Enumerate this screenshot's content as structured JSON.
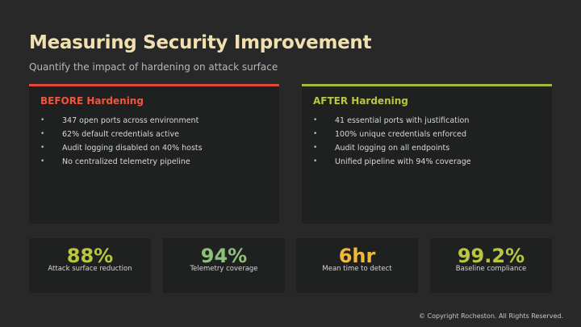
{
  "slide": {
    "title": "Measuring Security Improvement",
    "subtitle": "Quantify the impact of hardening on attack surface"
  },
  "before": {
    "heading": "BEFORE Hardening",
    "accent_color": "#e04a3a",
    "items": [
      "347 open ports across environment",
      "62% default credentials active",
      "Audit logging disabled on 40% hosts",
      "No centralized telemetry pipeline"
    ]
  },
  "after": {
    "heading": "AFTER Hardening",
    "accent_color": "#a8b83a",
    "items": [
      "41 essential ports with justification",
      "100% unique credentials enforced",
      "Audit logging on all endpoints",
      "Unified pipeline with 94% coverage"
    ]
  },
  "bullet_glyph": "•",
  "stats": [
    {
      "value": "88%",
      "label": "Attack surface reduction",
      "color": "#b9c640"
    },
    {
      "value": "94%",
      "label": "Telemetry coverage",
      "color": "#8fc07a"
    },
    {
      "value": "6hr",
      "label": "Mean time to detect",
      "color": "#f0b83a"
    },
    {
      "value": "99.2%",
      "label": "Baseline compliance",
      "color": "#b9c640"
    }
  ],
  "footer": {
    "copyright": "© Copyright Rocheston. All Rights Reserved."
  }
}
